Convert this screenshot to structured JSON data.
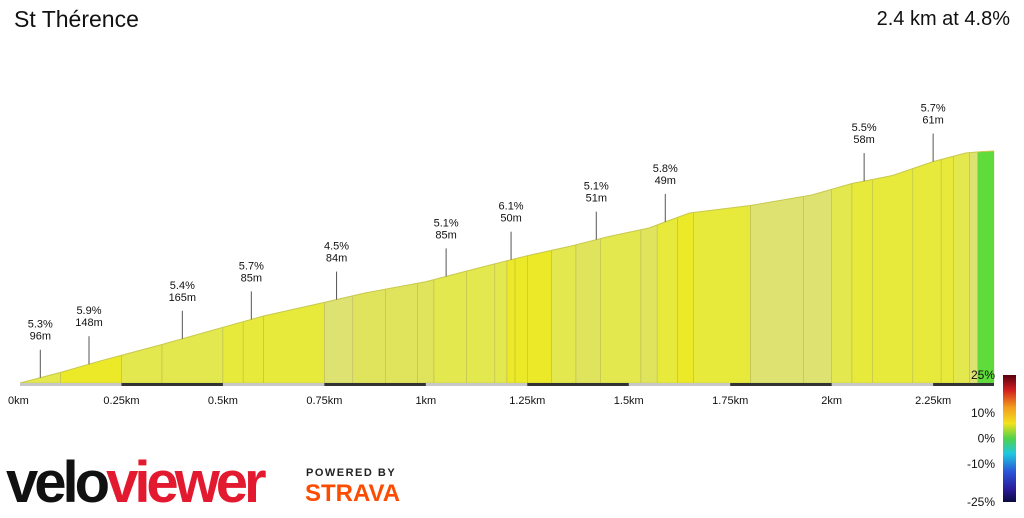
{
  "header": {
    "title": "St Thérence",
    "summary": "2.4 km at 4.8%"
  },
  "branding": {
    "logo_part1": "velo",
    "logo_part2": "viewer",
    "powered_by": "POWERED BY",
    "partner": "STRAVA"
  },
  "colors": {
    "logo_red": "#e3192f",
    "strava_orange": "#fc4c02",
    "flat_green": "#5fdb3c"
  },
  "chart_data": {
    "type": "area",
    "xlabel": "",
    "ylabel": "",
    "xlim": [
      0,
      2.4
    ],
    "x_ticks": [
      {
        "value": 0,
        "label": "0km"
      },
      {
        "value": 0.25,
        "label": "0.25km"
      },
      {
        "value": 0.5,
        "label": "0.5km"
      },
      {
        "value": 0.75,
        "label": "0.75km"
      },
      {
        "value": 1.0,
        "label": "1km"
      },
      {
        "value": 1.25,
        "label": "1.25km"
      },
      {
        "value": 1.5,
        "label": "1.5km"
      },
      {
        "value": 1.75,
        "label": "1.75km"
      },
      {
        "value": 2.0,
        "label": "2km"
      },
      {
        "value": 2.25,
        "label": "2.25km"
      }
    ],
    "elevation_profile": [
      {
        "x": 0.0,
        "y": 0
      },
      {
        "x": 0.1,
        "y": 5.3
      },
      {
        "x": 0.2,
        "y": 11.2
      },
      {
        "x": 0.35,
        "y": 19.3
      },
      {
        "x": 0.5,
        "y": 27.9
      },
      {
        "x": 0.6,
        "y": 33.6
      },
      {
        "x": 0.75,
        "y": 40.4
      },
      {
        "x": 0.85,
        "y": 45.1
      },
      {
        "x": 1.0,
        "y": 50.8
      },
      {
        "x": 1.1,
        "y": 56.1
      },
      {
        "x": 1.2,
        "y": 61.3
      },
      {
        "x": 1.25,
        "y": 63.8
      },
      {
        "x": 1.35,
        "y": 68.3
      },
      {
        "x": 1.45,
        "y": 73.4
      },
      {
        "x": 1.55,
        "y": 77.7
      },
      {
        "x": 1.6,
        "y": 81.5
      },
      {
        "x": 1.65,
        "y": 85.2
      },
      {
        "x": 1.8,
        "y": 89.0
      },
      {
        "x": 1.95,
        "y": 94.2
      },
      {
        "x": 2.05,
        "y": 100.0
      },
      {
        "x": 2.15,
        "y": 104.0
      },
      {
        "x": 2.25,
        "y": 111.0
      },
      {
        "x": 2.33,
        "y": 115.3
      },
      {
        "x": 2.37,
        "y": 116.0
      },
      {
        "x": 2.4,
        "y": 116.3
      }
    ],
    "segment_boundaries_km": [
      0.0,
      0.1,
      0.25,
      0.35,
      0.5,
      0.55,
      0.6,
      0.75,
      0.82,
      0.9,
      0.98,
      1.02,
      1.1,
      1.17,
      1.2,
      1.22,
      1.25,
      1.31,
      1.37,
      1.43,
      1.53,
      1.57,
      1.62,
      1.66,
      1.8,
      1.93,
      2.0,
      2.05,
      2.1,
      2.2,
      2.27,
      2.3,
      2.34,
      2.36,
      2.4
    ],
    "segment_grades": [
      5.3,
      5.9,
      5.4,
      5.4,
      5.7,
      5.6,
      5.7,
      4.5,
      4.6,
      4.8,
      4.9,
      5.1,
      5.1,
      5.3,
      6.1,
      6.2,
      6.1,
      5.0,
      4.9,
      5.1,
      4.9,
      5.8,
      6.0,
      5.8,
      4.1,
      4.5,
      5.2,
      5.5,
      5.6,
      5.5,
      5.7,
      5.4,
      4.5,
      0.4
    ],
    "climb_labels": [
      {
        "x": 0.05,
        "grade": "5.3%",
        "length": "96m"
      },
      {
        "x": 0.17,
        "grade": "5.9%",
        "length": "148m"
      },
      {
        "x": 0.4,
        "grade": "5.4%",
        "length": "165m"
      },
      {
        "x": 0.57,
        "grade": "5.7%",
        "length": "85m"
      },
      {
        "x": 0.78,
        "grade": "4.5%",
        "length": "84m"
      },
      {
        "x": 1.05,
        "grade": "5.1%",
        "length": "85m"
      },
      {
        "x": 1.21,
        "grade": "6.1%",
        "length": "50m"
      },
      {
        "x": 1.42,
        "grade": "5.1%",
        "length": "51m"
      },
      {
        "x": 1.59,
        "grade": "5.8%",
        "length": "49m"
      },
      {
        "x": 2.08,
        "grade": "5.5%",
        "length": "58m"
      },
      {
        "x": 2.25,
        "grade": "5.7%",
        "length": "61m"
      }
    ],
    "color_scale": {
      "labels": [
        "25%",
        "10%",
        "0%",
        "-10%",
        "-25%"
      ],
      "values": [
        25,
        10,
        0,
        -10,
        -25
      ]
    }
  }
}
